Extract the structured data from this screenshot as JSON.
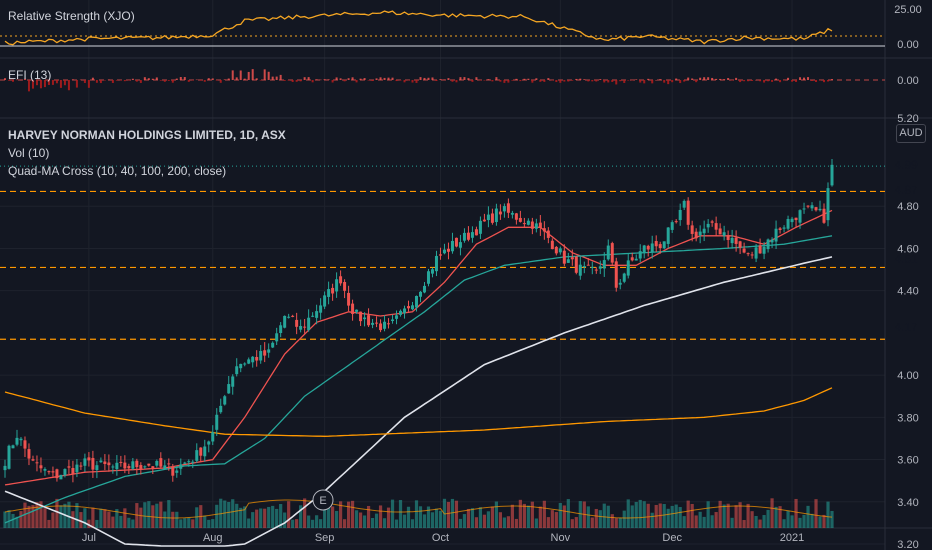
{
  "indicators": {
    "rs_label": "Relative Strength (XJO)",
    "efi_label": "EFI (13)"
  },
  "main": {
    "title": "HARVEY NORMAN HOLDINGS LIMITED, 1D, ASX",
    "vol_label": "Vol (10)",
    "ma_label": "Quad-MA Cross (10, 40, 100, 200, close)",
    "currency": "AUD",
    "earnings_marker": "E"
  },
  "axis": {
    "rs_ticks": [
      "25.00",
      "0.00"
    ],
    "efi_ticks": [
      "0.00",
      "5.20"
    ],
    "price_ticks": [
      "4.80",
      "4.60",
      "4.40",
      "4.00",
      "3.80",
      "3.60",
      "3.40",
      "3.20"
    ],
    "x_ticks": [
      "Jul",
      "Aug",
      "Sep",
      "Oct",
      "Nov",
      "Dec",
      "2021"
    ]
  },
  "price_tags": [
    {
      "value": "4.99",
      "color": "#26a69a"
    },
    {
      "value": "4.87",
      "color": "#ff9800"
    },
    {
      "value": "4.51",
      "color": "#ff9800"
    },
    {
      "value": "4.17",
      "color": "#ff9800"
    }
  ],
  "colors": {
    "up": "#26a69a",
    "down": "#ef5350",
    "ma10": "#ef5350",
    "ma40": "#26a69a",
    "ma100": "#e0e3eb",
    "ma200": "#ff9800",
    "level": "#ff9800",
    "rs": "#f5a623"
  },
  "chart_data": {
    "type": "candlestick",
    "title": "HARVEY NORMAN HOLDINGS LIMITED, 1D, ASX",
    "ylim": [
      3.2,
      5.0
    ],
    "last_price": 4.99,
    "horizontal_levels": [
      4.87,
      4.51,
      4.17
    ],
    "x_months": [
      "Jul",
      "Aug",
      "Sep",
      "Oct",
      "Nov",
      "Dec",
      "2021"
    ],
    "close_anchors": [
      [
        0,
        3.6
      ],
      [
        3,
        3.72
      ],
      [
        7,
        3.58
      ],
      [
        12,
        3.52
      ],
      [
        20,
        3.58
      ],
      [
        28,
        3.56
      ],
      [
        35,
        3.58
      ],
      [
        42,
        3.55
      ],
      [
        48,
        3.62
      ],
      [
        52,
        3.72
      ],
      [
        55,
        3.92
      ],
      [
        58,
        4.05
      ],
      [
        62,
        4.08
      ],
      [
        66,
        4.1
      ],
      [
        70,
        4.28
      ],
      [
        74,
        4.22
      ],
      [
        80,
        4.36
      ],
      [
        84,
        4.46
      ],
      [
        86,
        4.35
      ],
      [
        88,
        4.28
      ],
      [
        92,
        4.25
      ],
      [
        96,
        4.22
      ],
      [
        100,
        4.3
      ],
      [
        104,
        4.42
      ],
      [
        108,
        4.55
      ],
      [
        111,
        4.6
      ],
      [
        115,
        4.65
      ],
      [
        120,
        4.72
      ],
      [
        124,
        4.78
      ],
      [
        128,
        4.75
      ],
      [
        132,
        4.72
      ],
      [
        136,
        4.65
      ],
      [
        140,
        4.55
      ],
      [
        144,
        4.5
      ],
      [
        148,
        4.48
      ],
      [
        151,
        4.6
      ],
      [
        153,
        4.42
      ],
      [
        156,
        4.52
      ],
      [
        160,
        4.6
      ],
      [
        164,
        4.62
      ],
      [
        168,
        4.72
      ],
      [
        170,
        4.8
      ],
      [
        172,
        4.66
      ],
      [
        176,
        4.7
      ],
      [
        180,
        4.68
      ],
      [
        184,
        4.6
      ],
      [
        186,
        4.56
      ],
      [
        190,
        4.62
      ],
      [
        194,
        4.7
      ],
      [
        198,
        4.76
      ],
      [
        202,
        4.78
      ],
      [
        205,
        4.75
      ],
      [
        207,
        4.99
      ]
    ],
    "ma_series": {
      "ma10": [
        [
          0,
          3.48
        ],
        [
          20,
          3.54
        ],
        [
          40,
          3.56
        ],
        [
          52,
          3.6
        ],
        [
          60,
          3.8
        ],
        [
          70,
          4.1
        ],
        [
          78,
          4.25
        ],
        [
          86,
          4.3
        ],
        [
          94,
          4.28
        ],
        [
          102,
          4.3
        ],
        [
          110,
          4.44
        ],
        [
          118,
          4.62
        ],
        [
          126,
          4.7
        ],
        [
          134,
          4.7
        ],
        [
          142,
          4.58
        ],
        [
          150,
          4.52
        ],
        [
          158,
          4.52
        ],
        [
          166,
          4.6
        ],
        [
          174,
          4.66
        ],
        [
          182,
          4.66
        ],
        [
          190,
          4.62
        ],
        [
          198,
          4.7
        ],
        [
          207,
          4.78
        ]
      ],
      "ma40": [
        [
          0,
          3.3
        ],
        [
          15,
          3.42
        ],
        [
          30,
          3.52
        ],
        [
          45,
          3.57
        ],
        [
          55,
          3.58
        ],
        [
          65,
          3.7
        ],
        [
          75,
          3.9
        ],
        [
          90,
          4.1
        ],
        [
          105,
          4.3
        ],
        [
          115,
          4.45
        ],
        [
          125,
          4.52
        ],
        [
          140,
          4.56
        ],
        [
          160,
          4.58
        ],
        [
          180,
          4.6
        ],
        [
          195,
          4.62
        ],
        [
          207,
          4.66
        ]
      ],
      "ma100": [
        [
          0,
          3.45
        ],
        [
          20,
          3.3
        ],
        [
          30,
          3.2
        ],
        [
          50,
          3.18
        ],
        [
          60,
          3.2
        ],
        [
          70,
          3.3
        ],
        [
          80,
          3.45
        ],
        [
          100,
          3.8
        ],
        [
          120,
          4.05
        ],
        [
          140,
          4.2
        ],
        [
          160,
          4.33
        ],
        [
          180,
          4.44
        ],
        [
          200,
          4.53
        ],
        [
          207,
          4.56
        ]
      ],
      "ma200": [
        [
          0,
          3.92
        ],
        [
          20,
          3.82
        ],
        [
          40,
          3.76
        ],
        [
          55,
          3.72
        ],
        [
          80,
          3.71
        ],
        [
          120,
          3.74
        ],
        [
          150,
          3.78
        ],
        [
          175,
          3.8
        ],
        [
          190,
          3.83
        ],
        [
          200,
          3.88
        ],
        [
          207,
          3.94
        ]
      ]
    }
  }
}
